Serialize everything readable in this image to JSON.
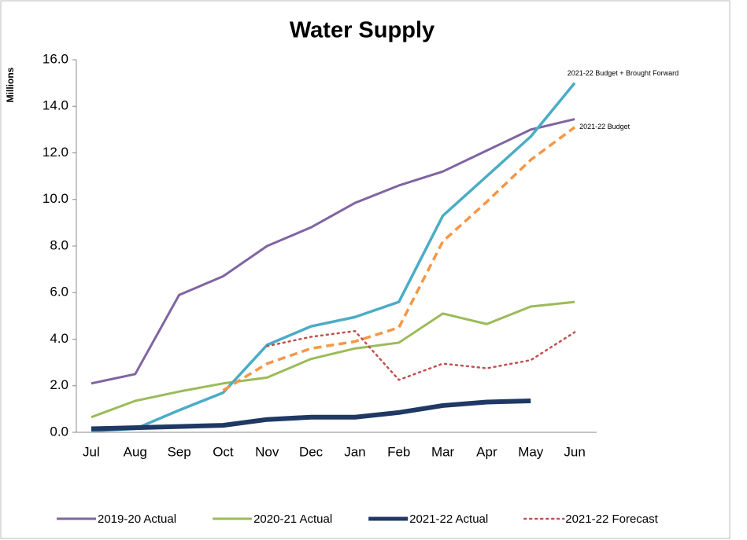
{
  "chart_data": {
    "type": "line",
    "title": "Water Supply",
    "y_label": "Millions",
    "categories": [
      "Jul",
      "Aug",
      "Sep",
      "Oct",
      "Nov",
      "Dec",
      "Jan",
      "Feb",
      "Mar",
      "Apr",
      "May",
      "Jun"
    ],
    "ylim": [
      0,
      16
    ],
    "yticks": [
      {
        "value": 0,
        "label": "0.0"
      },
      {
        "value": 2,
        "label": "2.0"
      },
      {
        "value": 4,
        "label": "4.0"
      },
      {
        "value": 6,
        "label": "6.0"
      },
      {
        "value": 8,
        "label": "8.0"
      },
      {
        "value": 10,
        "label": "10.0"
      },
      {
        "value": 12,
        "label": "12.0"
      },
      {
        "value": 14,
        "label": "14.0"
      },
      {
        "value": 16,
        "label": "16.0"
      }
    ],
    "grid": false,
    "series": [
      {
        "name": "2019-20 Actual",
        "color": "#8064a2",
        "style": "solid",
        "width": 3,
        "legend": true,
        "values": [
          2.1,
          2.5,
          5.9,
          6.7,
          8.0,
          8.8,
          9.85,
          10.6,
          11.2,
          12.1,
          13.0,
          13.45
        ]
      },
      {
        "name": "2020-21 Actual",
        "color": "#9bbb59",
        "style": "solid",
        "width": 3,
        "legend": true,
        "values": [
          0.65,
          1.35,
          1.75,
          2.1,
          2.35,
          3.15,
          3.6,
          3.85,
          5.1,
          4.65,
          5.4,
          5.6
        ]
      },
      {
        "name": "2021-22 Budget + Brought Forward",
        "color": "#4bacc6",
        "style": "solid",
        "width": 3.5,
        "legend": false,
        "values": [
          0.05,
          0.15,
          0.95,
          1.7,
          3.75,
          4.55,
          4.95,
          5.6,
          9.3,
          11.0,
          12.7,
          15.0
        ]
      },
      {
        "name": "2021-22 Budget",
        "color": "#f79646",
        "style": "dashed",
        "width": 3.5,
        "legend": false,
        "values": [
          null,
          null,
          null,
          1.8,
          2.95,
          3.6,
          3.9,
          4.5,
          8.2,
          9.9,
          11.7,
          13.1
        ]
      },
      {
        "name": "2021-22 Actual",
        "color": "#1f3864",
        "style": "solid",
        "width": 6,
        "legend": true,
        "values": [
          0.15,
          0.2,
          0.25,
          0.3,
          0.55,
          0.65,
          0.65,
          0.85,
          1.15,
          1.3,
          1.35,
          null
        ]
      },
      {
        "name": "2021-22 Forecast",
        "color": "#c0504d",
        "style": "dotted",
        "width": 2.5,
        "legend": true,
        "values": [
          null,
          null,
          null,
          null,
          3.7,
          4.1,
          4.35,
          2.25,
          2.95,
          2.75,
          3.1,
          4.3
        ]
      }
    ]
  }
}
